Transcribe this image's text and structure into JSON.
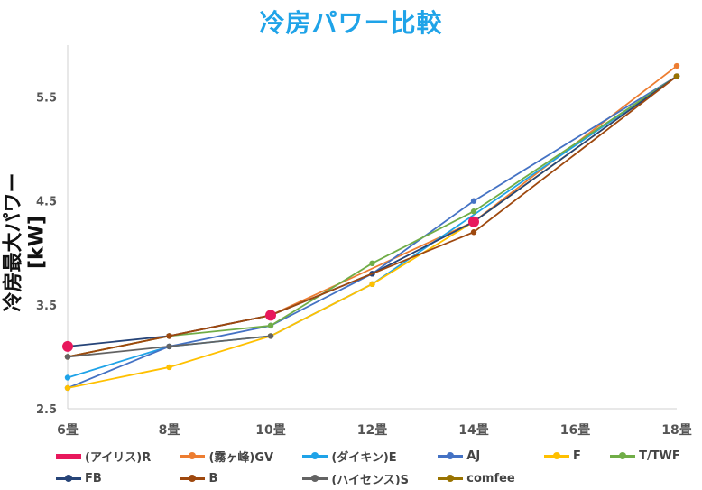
{
  "chart_data": {
    "type": "line",
    "title": "冷房パワー比較",
    "ylabel": "冷房最大パワー[kW]",
    "xlabel": "",
    "categories": [
      "6畳",
      "8畳",
      "10畳",
      "12畳",
      "14畳",
      "16畳",
      "18畳"
    ],
    "yticks": [
      "2.5",
      "3.5",
      "4.5",
      "5.5"
    ],
    "ylim": [
      2.5,
      6.0
    ],
    "grid": false,
    "legend_position": "bottom",
    "series": [
      {
        "name": "(アイリス)R",
        "color": "#e8185c",
        "values": [
          3.1,
          null,
          3.4,
          null,
          4.3,
          null,
          null
        ],
        "marker": "large-circle"
      },
      {
        "name": "(霧ヶ峰)GV",
        "color": "#ed7d31",
        "values": [
          3.0,
          3.2,
          3.4,
          null,
          4.3,
          null,
          5.8
        ]
      },
      {
        "name": "(ダイキン)E",
        "color": "#1fa3e8",
        "values": [
          2.8,
          3.1,
          3.2,
          3.7,
          null,
          null,
          5.7
        ]
      },
      {
        "name": "AJ",
        "color": "#4472c4",
        "values": [
          2.7,
          3.1,
          3.3,
          3.8,
          4.5,
          null,
          5.7
        ]
      },
      {
        "name": "F",
        "color": "#ffc000",
        "values": [
          2.7,
          2.9,
          3.2,
          3.7,
          4.3,
          null,
          5.7
        ]
      },
      {
        "name": "T/TWF",
        "color": "#70ad47",
        "values": [
          3.0,
          3.2,
          3.3,
          3.9,
          4.4,
          null,
          5.7
        ]
      },
      {
        "name": "FB",
        "color": "#264478",
        "values": [
          3.1,
          3.2,
          3.4,
          3.8,
          4.3,
          null,
          5.7
        ]
      },
      {
        "name": "B",
        "color": "#9e480e",
        "values": [
          3.0,
          3.2,
          3.4,
          null,
          4.2,
          null,
          5.7
        ]
      },
      {
        "name": "(ハイセンス)S",
        "color": "#636363",
        "values": [
          3.0,
          3.1,
          3.2,
          null,
          null,
          null,
          null
        ]
      },
      {
        "name": "comfee",
        "color": "#997300",
        "values": [
          null,
          null,
          null,
          null,
          null,
          null,
          5.7
        ]
      }
    ]
  }
}
